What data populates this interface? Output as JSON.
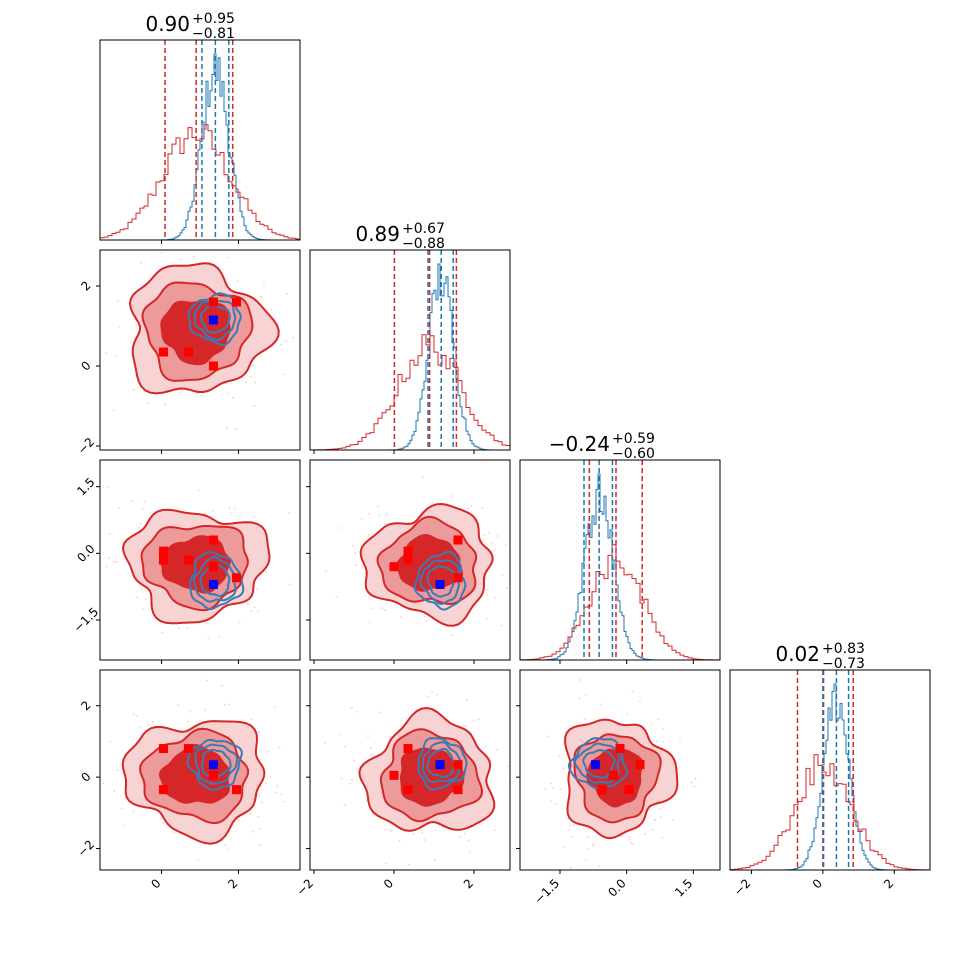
{
  "colors": {
    "red": "#d62728",
    "red_mid": "#ec9a9a",
    "red_light": "#f8d3d3",
    "blue": "#1f77b4",
    "blue_contour": "#3b7ab5",
    "marker_blue": "#0000ff",
    "marker_red": "#ff0000"
  },
  "chart_data": {
    "type": "corner",
    "parameters": 4,
    "titles": [
      {
        "median": "0.90",
        "plus": "+0.95",
        "minus": "−0.81"
      },
      {
        "median": "0.89",
        "plus": "+0.67",
        "minus": "−0.88"
      },
      {
        "median": "−0.24",
        "plus": "+0.59",
        "minus": "−0.60"
      },
      {
        "median": "0.02",
        "plus": "+0.83",
        "minus": "−0.73"
      }
    ],
    "ranges": [
      [
        -1.6,
        3.6
      ],
      [
        -2.1,
        2.9
      ],
      [
        -2.4,
        2.1
      ],
      [
        -2.6,
        3.0
      ]
    ],
    "tick_labels": [
      [
        {
          "value": 0,
          "label": "0"
        },
        {
          "value": 2,
          "label": "2"
        }
      ],
      [
        {
          "value": -2,
          "label": "−2"
        },
        {
          "value": 0,
          "label": "0"
        },
        {
          "value": 2,
          "label": "2"
        }
      ],
      [
        {
          "value": -1.5,
          "label": "−1.5"
        },
        {
          "value": 0,
          "label": "0.0"
        },
        {
          "value": 1.5,
          "label": "1.5"
        }
      ],
      [
        {
          "value": -2,
          "label": "−2"
        },
        {
          "value": 0,
          "label": "0"
        },
        {
          "value": 2,
          "label": "2"
        }
      ]
    ],
    "red_quantiles": [
      [
        0.09,
        0.9,
        1.85
      ],
      [
        0.01,
        0.89,
        1.56
      ],
      [
        -0.84,
        -0.24,
        0.35
      ],
      [
        -0.71,
        0.02,
        0.85
      ]
    ],
    "blue_quantiles": [
      [
        1.05,
        1.4,
        1.75
      ],
      [
        0.85,
        1.18,
        1.48
      ],
      [
        -0.96,
        -0.62,
        -0.32
      ],
      [
        0.0,
        0.38,
        0.72
      ]
    ],
    "blue_markers": [
      1.35,
      1.15,
      -0.7,
      0.35
    ],
    "red_markers": [
      [
        0.05,
        0.35,
        0.05,
        -0.35
      ],
      [
        0.7,
        0.35,
        -0.15,
        0.8
      ],
      [
        1.35,
        0.0,
        -0.3,
        0.05
      ],
      [
        1.95,
        1.6,
        -0.55,
        -0.35
      ],
      [
        0.05,
        0.35,
        -0.15,
        0.8
      ],
      [
        1.35,
        1.6,
        0.3,
        0.35
      ]
    ],
    "grid": false,
    "legend": "none"
  }
}
